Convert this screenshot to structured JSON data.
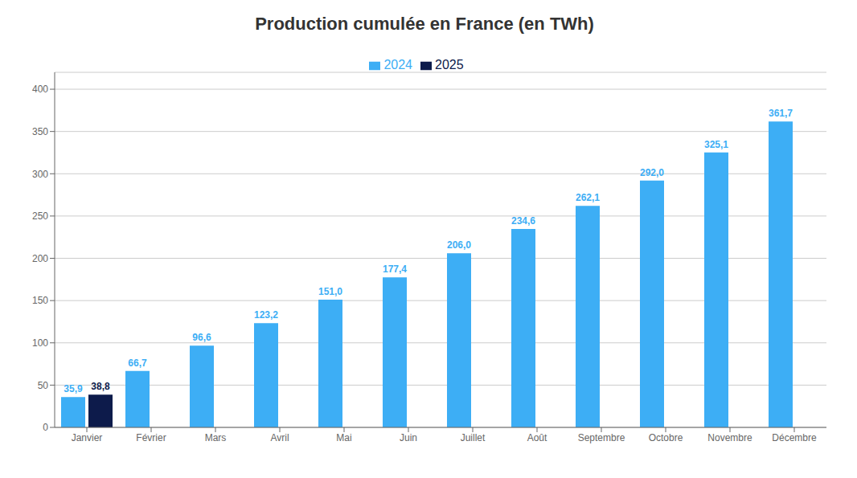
{
  "chart_data": {
    "type": "bar",
    "title": "Production cumulée en France (en TWh)",
    "categories": [
      "Janvier",
      "Février",
      "Mars",
      "Avril",
      "Mai",
      "Juin",
      "Juillet",
      "Août",
      "Septembre",
      "Octobre",
      "Novembre",
      "Décembre"
    ],
    "series": [
      {
        "name": "2024",
        "color": "#3daef5",
        "values": [
          35.9,
          66.7,
          96.6,
          123.2,
          151.0,
          177.4,
          206.0,
          234.6,
          262.1,
          292.0,
          325.1,
          361.7
        ],
        "value_labels": [
          "35,9",
          "66,7",
          "96,6",
          "123,2",
          "151,0",
          "177,4",
          "206,0",
          "234,6",
          "262,1",
          "292,0",
          "325,1",
          "361,7"
        ]
      },
      {
        "name": "2025",
        "color": "#0d1b4b",
        "values": [
          38.8,
          null,
          null,
          null,
          null,
          null,
          null,
          null,
          null,
          null,
          null,
          null
        ],
        "value_labels": [
          "38,8",
          null,
          null,
          null,
          null,
          null,
          null,
          null,
          null,
          null,
          null,
          null
        ]
      }
    ],
    "ylim": [
      0,
      420
    ],
    "yticks": [
      0,
      50,
      100,
      150,
      200,
      250,
      300,
      350,
      400
    ],
    "grid": true,
    "legend": "top",
    "data_labels": true
  }
}
